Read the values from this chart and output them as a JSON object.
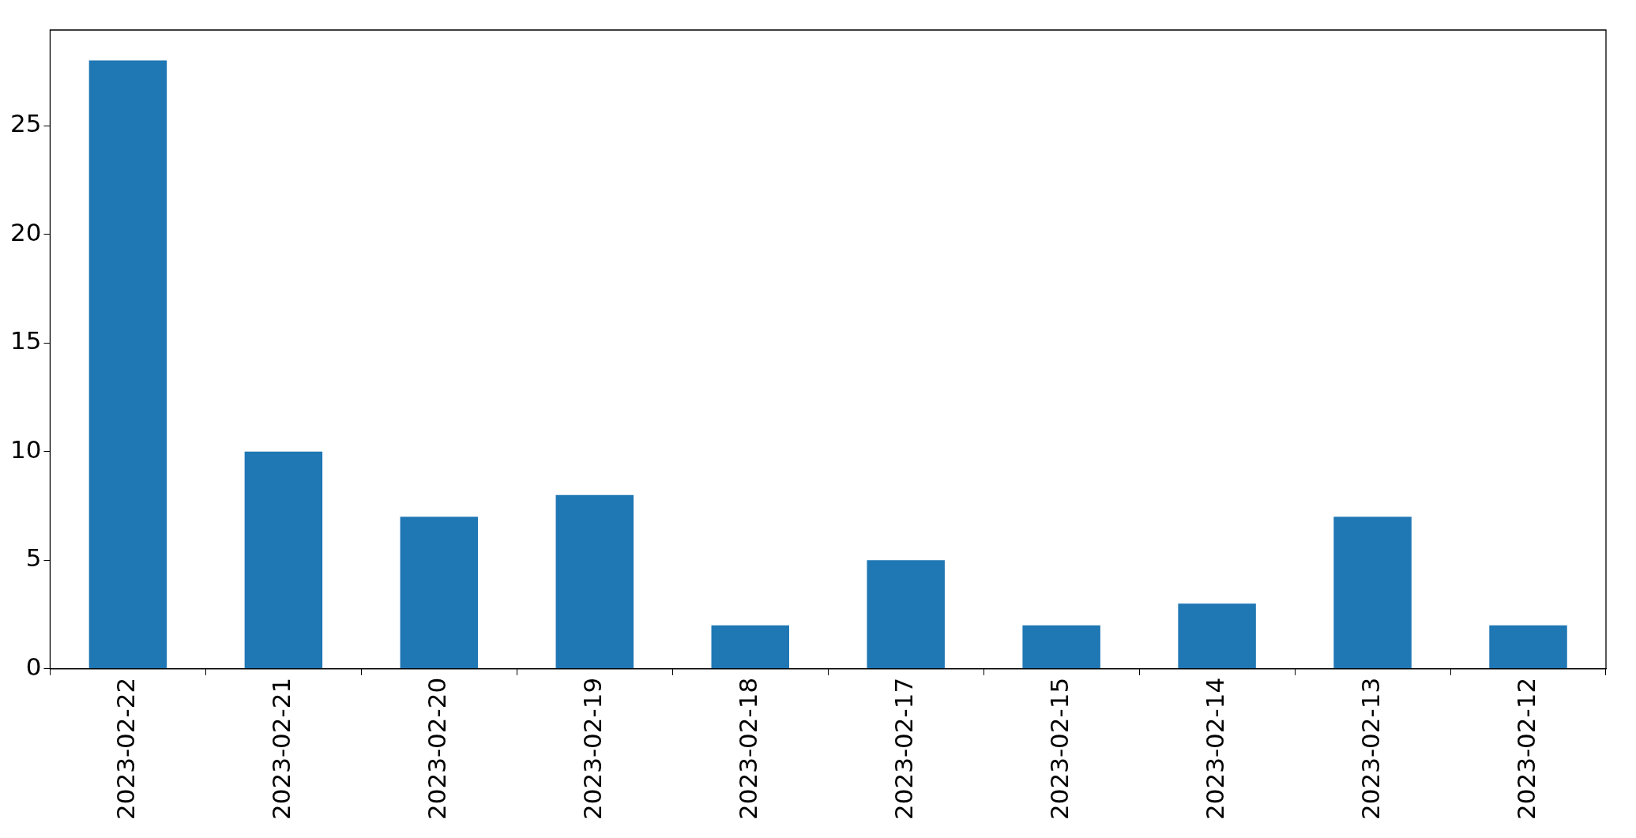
{
  "chart_data": {
    "type": "bar",
    "categories": [
      "2023-02-22",
      "2023-02-21",
      "2023-02-20",
      "2023-02-19",
      "2023-02-18",
      "2023-02-17",
      "2023-02-15",
      "2023-02-14",
      "2023-02-13",
      "2023-02-12"
    ],
    "values": [
      28,
      10,
      7,
      8,
      2,
      5,
      2,
      3,
      7,
      2
    ],
    "color": "#1f77b4",
    "ylim": [
      0,
      29.4
    ],
    "yticks": [
      0,
      5,
      10,
      15,
      20,
      25
    ],
    "grid": false,
    "legend": false
  }
}
